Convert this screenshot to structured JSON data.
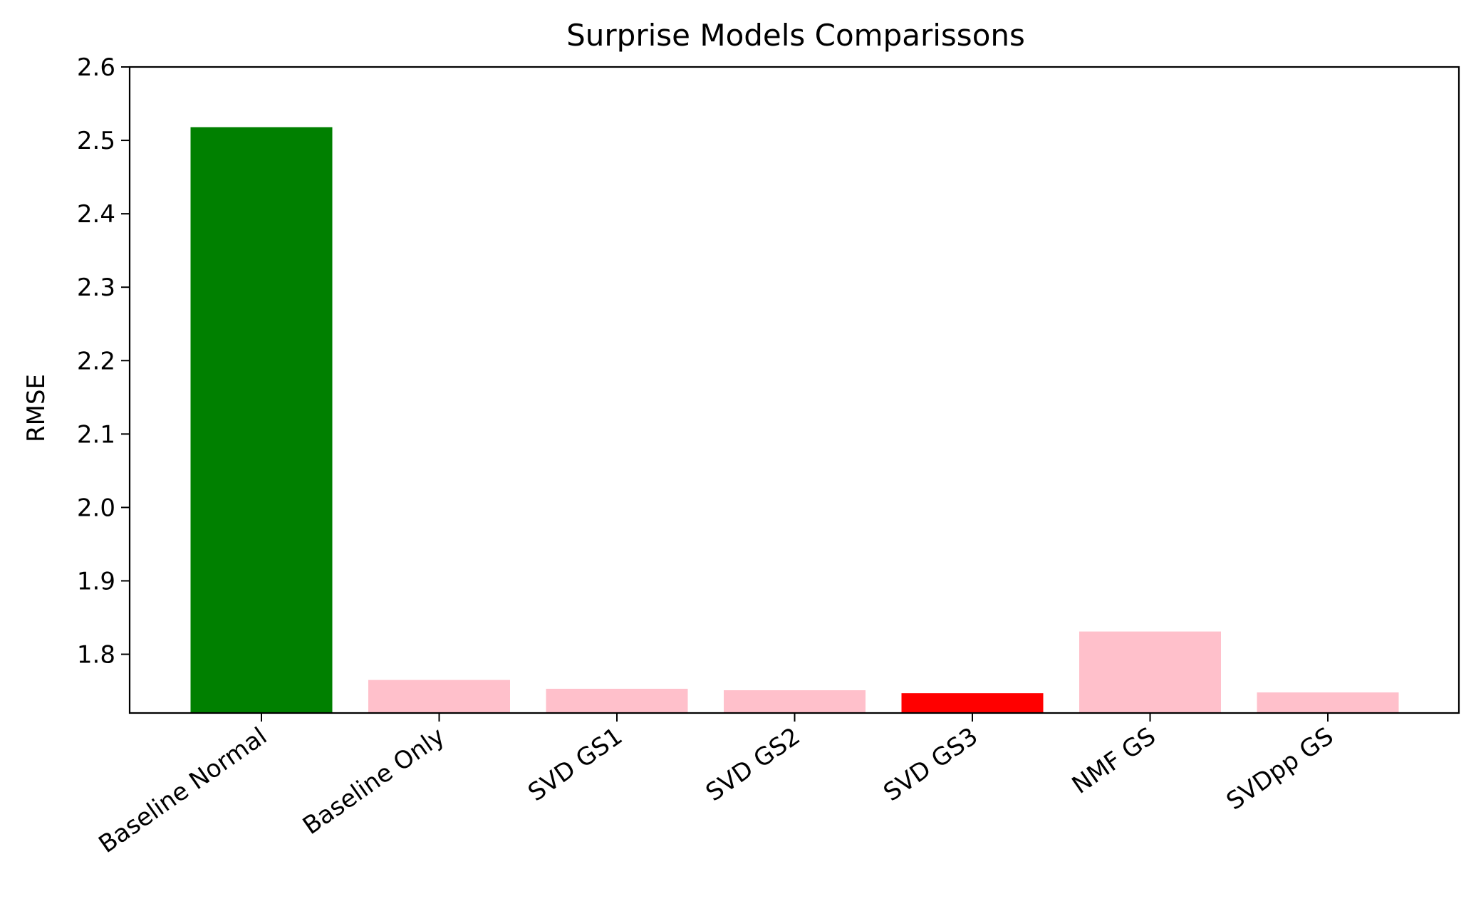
{
  "chart_data": {
    "type": "bar",
    "title": "Surprise Models Comparissons",
    "xlabel": "",
    "ylabel": "RMSE",
    "ylim": [
      1.72,
      2.6
    ],
    "yticks": [
      "1.8",
      "1.9",
      "2.0",
      "2.1",
      "2.2",
      "2.3",
      "2.4",
      "2.5",
      "2.6"
    ],
    "categories": [
      "Baseline Normal",
      "Baseline Only",
      "SVD GS1",
      "SVD GS2",
      "SVD GS3",
      "NMF GS",
      "SVDpp GS"
    ],
    "values": [
      2.518,
      1.765,
      1.753,
      1.751,
      1.747,
      1.831,
      1.748
    ],
    "colors": [
      "#008000",
      "#ffc0cb",
      "#ffc0cb",
      "#ffc0cb",
      "#ff0000",
      "#ffc0cb",
      "#ffc0cb"
    ],
    "grid": false,
    "legend": "none"
  }
}
